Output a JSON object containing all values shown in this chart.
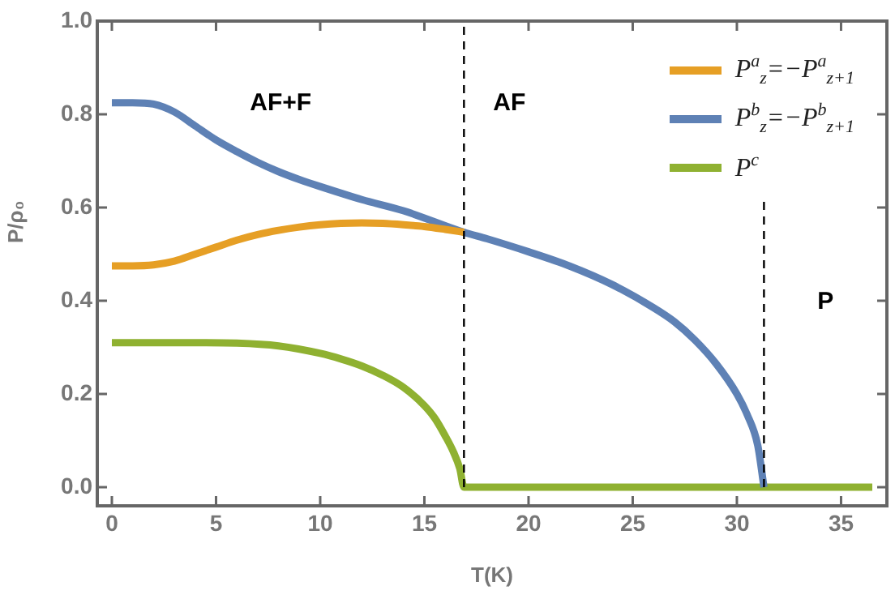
{
  "chart_data": {
    "type": "line",
    "xlabel": "T(K)",
    "ylabel": "P/ρ₀",
    "xlim": [
      -0.7,
      37.2
    ],
    "ylim": [
      -0.04,
      1.0
    ],
    "xticks": [
      0,
      5,
      10,
      15,
      20,
      25,
      30,
      35
    ],
    "yticks": [
      {
        "value": 0,
        "label": "0.0"
      },
      {
        "value": 0.2,
        "label": "0.2"
      },
      {
        "value": 0.4,
        "label": "0.4"
      },
      {
        "value": 0.6,
        "label": "0.6"
      },
      {
        "value": 0.8,
        "label": "0.8"
      },
      {
        "value": 1,
        "label": "1.0"
      }
    ],
    "grid": false,
    "legend": "top right",
    "marker": "none",
    "line_style": "solid",
    "series": [
      {
        "name": "P$^{a}$$_{z}$=−P$^{a}$$_{z+1}$",
        "color": "#e69f25",
        "x": [
          0,
          1,
          2,
          3,
          4,
          5,
          6,
          7,
          8,
          9,
          10,
          11,
          12,
          13,
          14,
          15,
          16,
          16.9
        ],
        "values": [
          0.475,
          0.475,
          0.477,
          0.485,
          0.5,
          0.515,
          0.53,
          0.542,
          0.551,
          0.558,
          0.563,
          0.566,
          0.567,
          0.566,
          0.563,
          0.559,
          0.553,
          0.547
        ]
      },
      {
        "name": "P$^{b}$$_{z}$=−P$^{b}$$_{z+1}$",
        "color": "#5e81b5",
        "x": [
          0,
          1,
          2,
          3,
          4,
          5,
          6,
          7,
          8,
          9,
          10,
          12,
          14,
          16.9,
          18,
          20,
          22,
          24,
          26,
          27,
          28,
          29,
          30,
          30.5,
          31,
          31.3
        ],
        "values": [
          0.825,
          0.825,
          0.822,
          0.805,
          0.775,
          0.745,
          0.72,
          0.697,
          0.677,
          0.66,
          0.645,
          0.617,
          0.593,
          0.547,
          0.533,
          0.505,
          0.474,
          0.435,
          0.385,
          0.355,
          0.315,
          0.265,
          0.2,
          0.155,
          0.09,
          0.0
        ]
      },
      {
        "name": "P$^{c}$",
        "color": "#8fb131",
        "x": [
          0,
          2,
          4,
          6,
          8,
          10,
          11,
          12,
          13,
          14,
          15,
          15.5,
          16,
          16.4,
          16.7,
          16.9,
          20,
          25,
          30,
          36.5
        ],
        "values": [
          0.31,
          0.31,
          0.31,
          0.309,
          0.303,
          0.287,
          0.275,
          0.26,
          0.24,
          0.214,
          0.175,
          0.148,
          0.11,
          0.075,
          0.04,
          0.0,
          0.0,
          0.0,
          0.0,
          0.0
        ]
      }
    ],
    "ref_lines": [
      {
        "axis": "x",
        "value": 16.9,
        "color": "#000000",
        "line_style": "dashed"
      },
      {
        "axis": "x",
        "value": 31.3,
        "color": "#000000",
        "line_style": "dashed"
      }
    ],
    "annotations": [
      "AF+F",
      "AF",
      "P"
    ]
  }
}
